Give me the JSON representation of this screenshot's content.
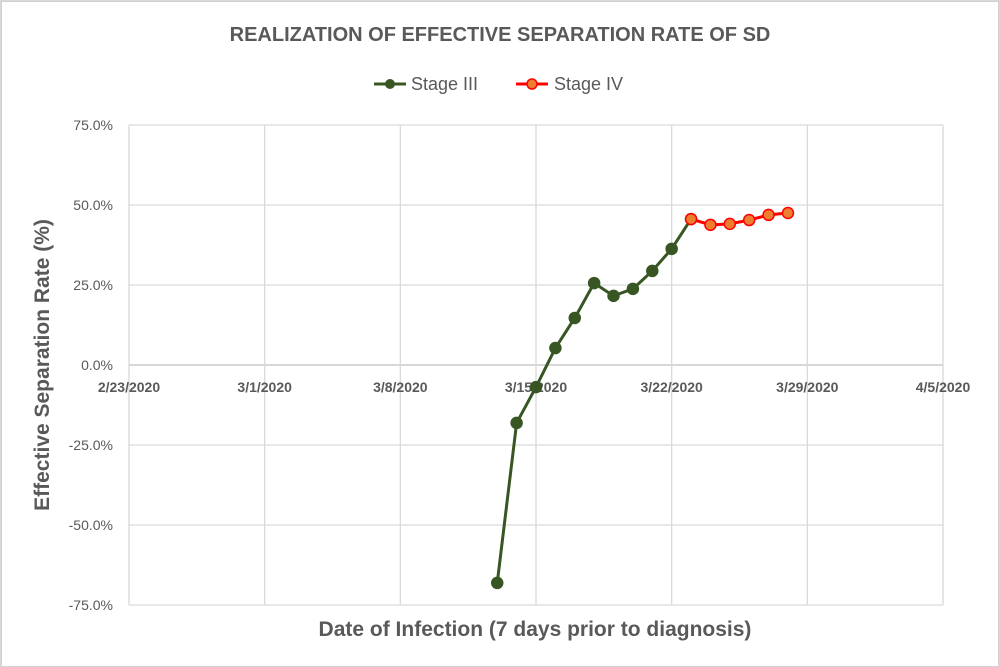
{
  "chart_data": {
    "type": "line",
    "title": "REALIZATION OF EFFECTIVE SEPARATION RATE OF SD",
    "xlabel": "Date of Infection (7 days prior to diagnosis)",
    "ylabel": "Effective Separation Rate (%)",
    "legend_position": "top",
    "grid": true,
    "xlim": [
      "2020-02-23",
      "2020-04-05"
    ],
    "ylim": [
      -75,
      75
    ],
    "x_tick_labels": [
      "2/23/2020",
      "3/1/2020",
      "3/8/2020",
      "3/15/2020",
      "3/22/2020",
      "3/29/2020",
      "4/5/2020"
    ],
    "x_ticks_days": [
      0,
      7,
      14,
      21,
      28,
      35,
      42
    ],
    "y_tick_labels": [
      "75.0%",
      "50.0%",
      "25.0%",
      "0.0%",
      "-25.0%",
      "-50.0%",
      "-75.0%"
    ],
    "y_ticks": [
      75,
      50,
      25,
      0,
      -25,
      -50,
      -75
    ],
    "series": [
      {
        "name": "Stage III",
        "line_color": "#375623",
        "marker_fill": "#375623",
        "marker_stroke": "#375623",
        "x": [
          "3/13/2020",
          "3/14/2020",
          "3/15/2020",
          "3/16/2020",
          "3/17/2020",
          "3/18/2020",
          "3/19/2020",
          "3/20/2020",
          "3/21/2020",
          "3/22/2020",
          "3/23/2020"
        ],
        "x_days": [
          19,
          20,
          21,
          22,
          23,
          24,
          25,
          26,
          27,
          28,
          29
        ],
        "values": [
          -68.1,
          -18.1,
          -6.9,
          5.3,
          14.7,
          25.6,
          21.6,
          23.8,
          29.4,
          36.3,
          45.6
        ]
      },
      {
        "name": "Stage IV",
        "line_color": "#ff0000",
        "marker_fill": "#ed7d31",
        "marker_stroke": "#ff0000",
        "x": [
          "3/23/2020",
          "3/24/2020",
          "3/25/2020",
          "3/26/2020",
          "3/27/2020",
          "3/28/2020"
        ],
        "x_days": [
          29,
          30,
          31,
          32,
          33,
          34
        ],
        "values": [
          45.6,
          43.8,
          44.1,
          45.3,
          46.9,
          47.5
        ]
      }
    ]
  }
}
